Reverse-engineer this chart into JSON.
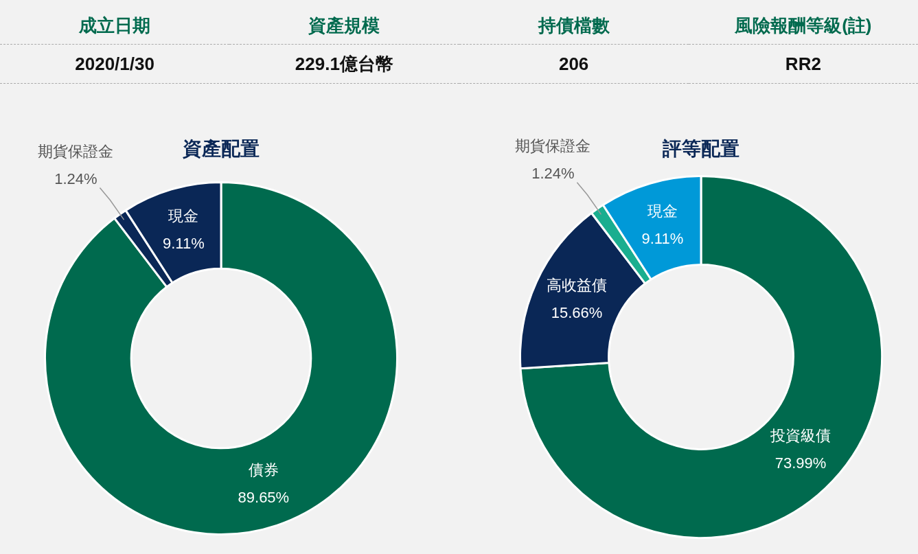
{
  "chart_data": [
    {
      "type": "other",
      "categories": [
        "成立日期",
        "資產規模",
        "持債檔數",
        "風險報酬等級(註)"
      ],
      "annotations": [
        "2020/1/30",
        "229.1億台幣",
        "206",
        "RR2"
      ]
    },
    {
      "type": "donut",
      "title": "資產配置",
      "categories": [
        "債券",
        "期貨保證金",
        "現金"
      ],
      "values": [
        89.65,
        1.24,
        9.11
      ],
      "value_labels": [
        "89.65%",
        "1.24%",
        "9.11%"
      ],
      "colors": [
        "#006a4e",
        "#0a2756",
        "#0a2756"
      ]
    },
    {
      "type": "donut",
      "title": "評等配置",
      "categories": [
        "投資級債",
        "高收益債",
        "期貨保證金",
        "現金"
      ],
      "values": [
        73.99,
        15.66,
        1.24,
        9.11
      ],
      "value_labels": [
        "73.99%",
        "15.66%",
        "1.24%",
        "9.11%"
      ],
      "colors": [
        "#006a4e",
        "#0a2756",
        "#1aae8f",
        "#0099d8"
      ]
    }
  ]
}
